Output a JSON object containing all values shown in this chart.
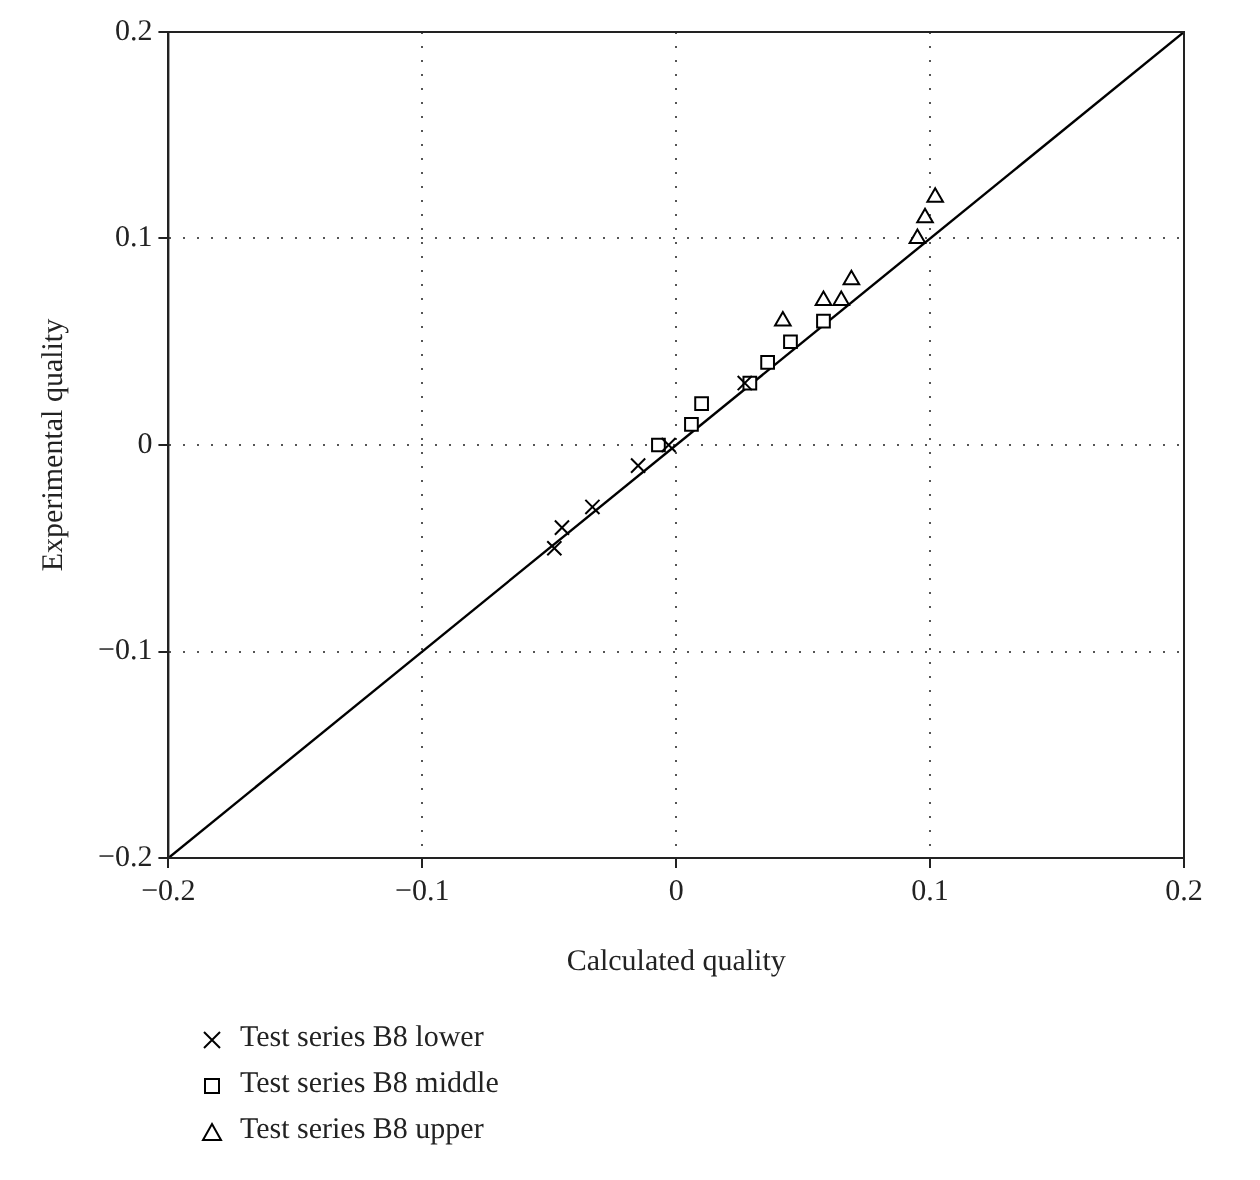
{
  "chart_data": {
    "type": "scatter",
    "xlabel": "Calculated quality",
    "ylabel": "Experimental quality",
    "xlim": [
      -0.2,
      0.2
    ],
    "ylim": [
      -0.2,
      0.2
    ],
    "xticks": [
      {
        "value": -0.2,
        "label": "−0.2"
      },
      {
        "value": -0.1,
        "label": "−0.1"
      },
      0,
      0.1,
      0.2
    ],
    "yticks": [
      {
        "value": -0.2,
        "label": "−0.2"
      },
      {
        "value": -0.1,
        "label": "−0.1"
      },
      0,
      0.1,
      0.2
    ],
    "grid": true,
    "legend": "bottom left",
    "series": [
      {
        "name": "Test series B8 lower",
        "color": "#000000",
        "marker": "cross",
        "x": [
          -0.048,
          -0.045,
          -0.033,
          -0.015,
          -0.003,
          0.027
        ],
        "values": [
          -0.05,
          -0.04,
          -0.03,
          -0.01,
          0,
          0.03
        ]
      },
      {
        "name": "Test series B8 middle",
        "color": "#000000",
        "marker": "square",
        "x": [
          -0.007,
          0.006,
          0.01,
          0.029,
          0.036,
          0.045,
          0.058
        ],
        "values": [
          0,
          0.01,
          0.02,
          0.03,
          0.04,
          0.05,
          0.06
        ]
      },
      {
        "name": "Test series B8 upper",
        "color": "#000000",
        "marker": "triangle",
        "x": [
          0.042,
          0.058,
          0.065,
          0.069,
          0.095,
          0.098,
          0.102
        ],
        "values": [
          0.06,
          0.07,
          0.07,
          0.08,
          0.1,
          0.11,
          0.12
        ]
      },
      {
        "type": "line",
        "color": "#000000",
        "marker": "none",
        "x": [
          -0.2,
          0.2
        ],
        "values": [
          -0.2,
          0.2
        ]
      }
    ]
  }
}
